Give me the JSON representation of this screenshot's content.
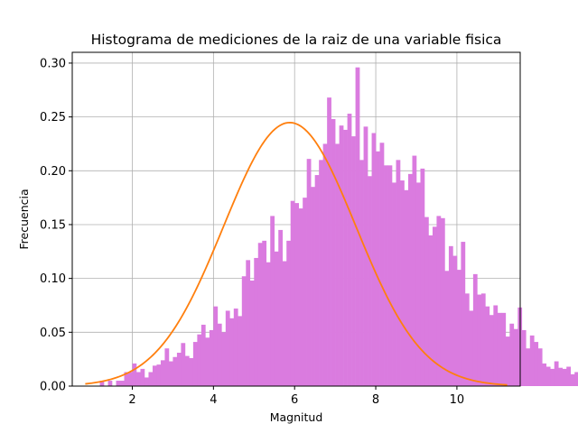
{
  "chart_data": {
    "type": "histogram",
    "title": "Histograma de mediciones de la raiz de una variable fisica",
    "xlabel": "Magnitud",
    "ylabel": "Frecuencia",
    "xlim": [
      0.52,
      11.56
    ],
    "ylim": [
      0,
      0.31
    ],
    "xticks": [
      2,
      4,
      6,
      8,
      10
    ],
    "yticks": [
      0.0,
      0.05,
      0.1,
      0.15,
      0.2,
      0.25,
      0.3
    ],
    "ytick_labels": [
      "0.00",
      "0.05",
      "0.10",
      "0.15",
      "0.20",
      "0.25",
      "0.30"
    ],
    "grid": true,
    "histogram": {
      "color": "#da7bdf",
      "bin_start": 1.0,
      "bin_width": 0.1,
      "values": [
        0.0,
        0.0,
        0.005,
        0.0,
        0.005,
        0.0,
        0.005,
        0.005,
        0.013,
        0.013,
        0.021,
        0.013,
        0.016,
        0.008,
        0.013,
        0.019,
        0.02,
        0.024,
        0.035,
        0.023,
        0.027,
        0.031,
        0.04,
        0.028,
        0.026,
        0.041,
        0.048,
        0.057,
        0.045,
        0.052,
        0.074,
        0.058,
        0.05,
        0.07,
        0.063,
        0.072,
        0.065,
        0.102,
        0.117,
        0.098,
        0.119,
        0.133,
        0.135,
        0.115,
        0.158,
        0.125,
        0.145,
        0.116,
        0.135,
        0.172,
        0.17,
        0.165,
        0.175,
        0.211,
        0.185,
        0.196,
        0.21,
        0.225,
        0.268,
        0.248,
        0.225,
        0.242,
        0.238,
        0.253,
        0.232,
        0.296,
        0.21,
        0.241,
        0.195,
        0.235,
        0.218,
        0.226,
        0.205,
        0.205,
        0.189,
        0.21,
        0.191,
        0.182,
        0.197,
        0.214,
        0.189,
        0.202,
        0.157,
        0.14,
        0.148,
        0.158,
        0.156,
        0.107,
        0.13,
        0.121,
        0.108,
        0.134,
        0.086,
        0.07,
        0.104,
        0.085,
        0.086,
        0.074,
        0.066,
        0.075,
        0.068,
        0.068,
        0.046,
        0.058,
        0.053,
        0.073,
        0.052,
        0.035,
        0.047,
        0.041,
        0.035,
        0.021,
        0.018,
        0.016,
        0.023,
        0.017,
        0.016,
        0.018,
        0.011,
        0.013,
        0.012,
        0.007,
        0.0,
        0.005,
        0.0,
        0.0,
        0.0,
        0.0,
        0.0,
        0.0
      ]
    },
    "normal_fit": {
      "color": "#ff7f0e",
      "mean": 5.88,
      "std": 1.63,
      "x_start": 0.84,
      "x_end": 11.24
    }
  }
}
